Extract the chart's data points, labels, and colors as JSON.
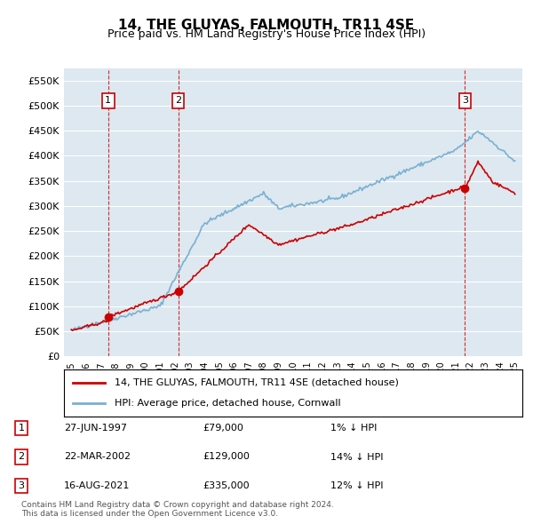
{
  "title": "14, THE GLUYAS, FALMOUTH, TR11 4SE",
  "subtitle": "Price paid vs. HM Land Registry's House Price Index (HPI)",
  "ylabel_ticks": [
    "£0",
    "£50K",
    "£100K",
    "£150K",
    "£200K",
    "£250K",
    "£300K",
    "£350K",
    "£400K",
    "£450K",
    "£500K",
    "£550K"
  ],
  "ytick_values": [
    0,
    50000,
    100000,
    150000,
    200000,
    250000,
    300000,
    350000,
    400000,
    450000,
    500000,
    550000
  ],
  "ylim": [
    0,
    575000
  ],
  "xlim_start": 1994.5,
  "xlim_end": 2025.5,
  "bg_color": "#dde8f0",
  "plot_bg_color": "#dde8f0",
  "sale_color": "#cc0000",
  "hpi_color": "#aac4dd",
  "red_line_color": "#cc0000",
  "blue_line_color": "#7ab0d0",
  "sale_marker_color": "#cc0000",
  "vline_color": "#cc0000",
  "legend_box_color": "#ffffff",
  "legend_label1": "14, THE GLUYAS, FALMOUTH, TR11 4SE (detached house)",
  "legend_label2": "HPI: Average price, detached house, Cornwall",
  "table_entries": [
    {
      "num": 1,
      "date": "27-JUN-1997",
      "price": "£79,000",
      "hpi": "1% ↓ HPI"
    },
    {
      "num": 2,
      "date": "22-MAR-2002",
      "price": "£129,000",
      "hpi": "14% ↓ HPI"
    },
    {
      "num": 3,
      "date": "16-AUG-2021",
      "price": "£335,000",
      "hpi": "12% ↓ HPI"
    }
  ],
  "copyright_text": "Contains HM Land Registry data © Crown copyright and database right 2024.\nThis data is licensed under the Open Government Licence v3.0.",
  "sales": [
    {
      "year": 1997.49,
      "price": 79000
    },
    {
      "year": 2002.22,
      "price": 129000
    },
    {
      "year": 2021.62,
      "price": 335000
    }
  ],
  "vlines": [
    1997.49,
    2002.22,
    2021.62
  ],
  "annotations": [
    {
      "num": 1,
      "year": 1997.49,
      "y": 510000
    },
    {
      "num": 2,
      "year": 2002.22,
      "y": 510000
    },
    {
      "num": 3,
      "year": 2021.62,
      "y": 510000
    }
  ]
}
